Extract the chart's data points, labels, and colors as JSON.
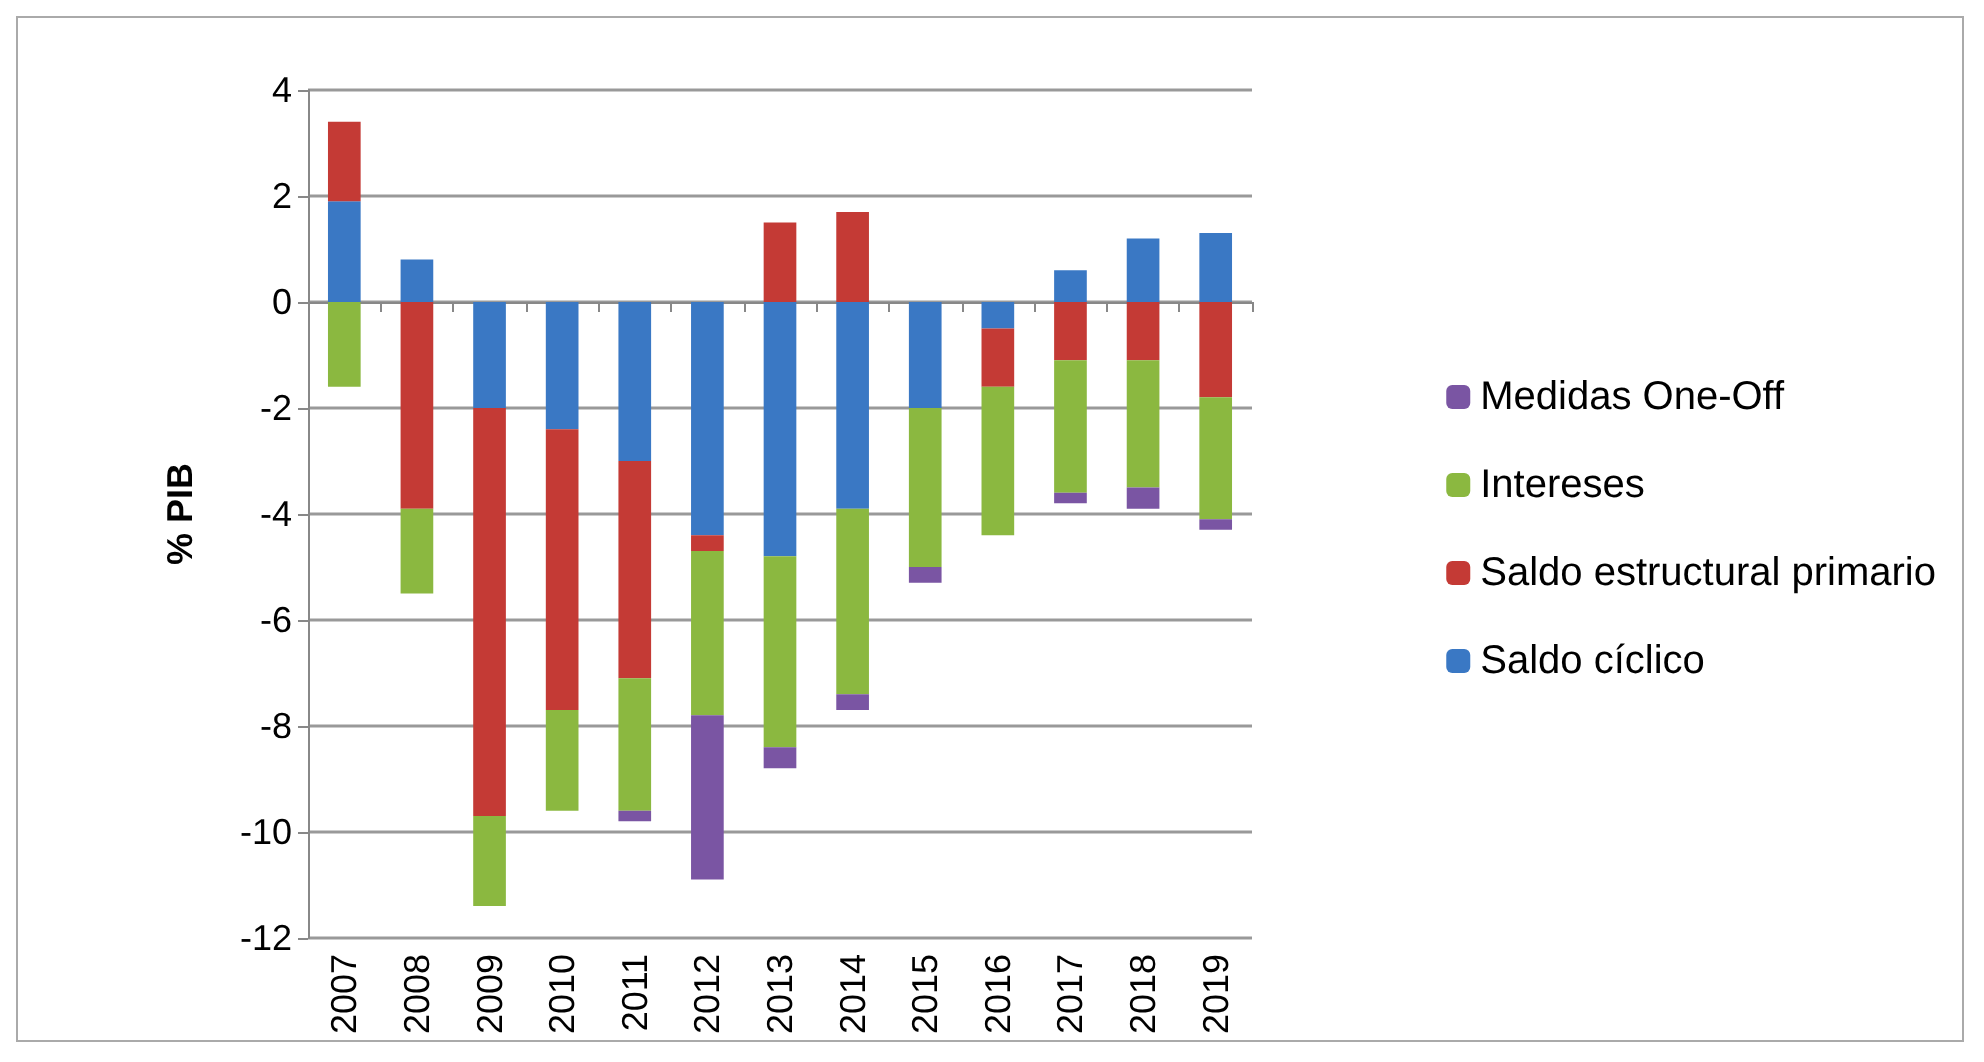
{
  "chart_data": {
    "type": "bar",
    "stacked": true,
    "ylabel": "% PIB",
    "categories": [
      "2007",
      "2008",
      "2009",
      "2010",
      "2011",
      "2012",
      "2013",
      "2014",
      "2015",
      "2016",
      "2017",
      "2018",
      "2019"
    ],
    "series": [
      {
        "name": "Saldo cíclico",
        "color": "#3a78c4",
        "values": [
          1.9,
          0.8,
          -2.0,
          -2.4,
          -3.0,
          -4.4,
          -4.8,
          -3.9,
          -2.0,
          -0.5,
          0.6,
          1.2,
          1.3
        ]
      },
      {
        "name": "Saldo estructural primario",
        "color": "#c43a35",
        "values": [
          1.5,
          -3.9,
          -7.7,
          -5.3,
          -4.1,
          -0.3,
          1.5,
          1.7,
          0,
          -1.1,
          -1.1,
          -1.1,
          -1.8
        ]
      },
      {
        "name": "Intereses",
        "color": "#8bb840",
        "values": [
          -1.6,
          -1.6,
          -1.7,
          -1.9,
          -2.5,
          -3.1,
          -3.6,
          -3.5,
          -3.0,
          -2.8,
          -2.5,
          -2.4,
          -2.3
        ]
      },
      {
        "name": "Medidas One-Off",
        "color": "#7a55a3",
        "values": [
          0,
          0,
          0,
          0,
          -0.2,
          -3.1,
          -0.4,
          -0.3,
          -0.3,
          0,
          -0.2,
          -0.4,
          -0.2
        ]
      }
    ],
    "ylim": [
      -12,
      4
    ],
    "yticks": [
      -12,
      -10,
      -8,
      -6,
      -4,
      -2,
      0,
      2,
      4
    ],
    "grid": "y",
    "legend": "right"
  }
}
